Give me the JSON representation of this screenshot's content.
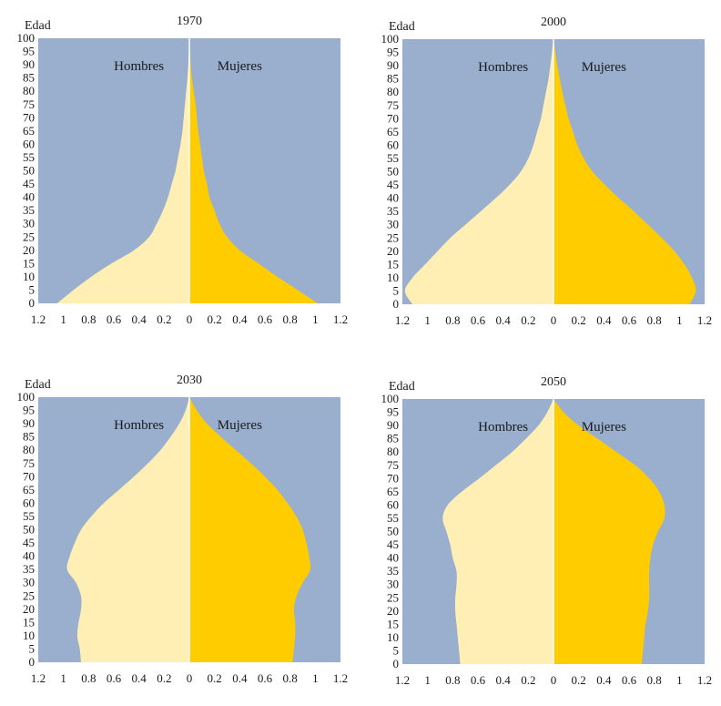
{
  "colors": {
    "background": "#9AAFCE",
    "men": "#FFEFB4",
    "women": "#FFCC00",
    "center_line": "#FFFFFF"
  },
  "chart_data": [
    {
      "type": "area",
      "chart_kind": "population-pyramid",
      "title": "1970",
      "ylabel": "Edad",
      "left_label": "Hombres",
      "right_label": "Mujeres",
      "xlim": [
        -1.2,
        1.2
      ],
      "ylim": [
        0,
        100
      ],
      "x_tick_labels": [
        "1.2",
        "1",
        "0.8",
        "0.6",
        "0.4",
        "0.2",
        "0",
        "0.2",
        "0.4",
        "0.6",
        "0.8",
        "1",
        "1.2"
      ],
      "y_ticks": [
        0,
        5,
        10,
        15,
        20,
        25,
        30,
        35,
        40,
        45,
        50,
        55,
        60,
        65,
        70,
        75,
        80,
        85,
        90,
        95,
        100
      ],
      "ages": [
        0,
        5,
        10,
        15,
        20,
        25,
        30,
        35,
        40,
        45,
        50,
        55,
        60,
        65,
        70,
        75,
        80,
        85,
        90,
        95,
        100
      ],
      "men": [
        1.05,
        0.92,
        0.78,
        0.62,
        0.44,
        0.32,
        0.26,
        0.21,
        0.17,
        0.14,
        0.11,
        0.09,
        0.07,
        0.055,
        0.045,
        0.035,
        0.025,
        0.015,
        0.008,
        0.004,
        0
      ],
      "women": [
        1.02,
        0.86,
        0.7,
        0.55,
        0.4,
        0.3,
        0.24,
        0.2,
        0.16,
        0.14,
        0.115,
        0.1,
        0.085,
        0.07,
        0.06,
        0.05,
        0.035,
        0.02,
        0.01,
        0.005,
        0
      ]
    },
    {
      "type": "area",
      "chart_kind": "population-pyramid",
      "title": "2000",
      "ylabel": "Edad",
      "left_label": "Hombres",
      "right_label": "Mujeres",
      "xlim": [
        -1.2,
        1.2
      ],
      "ylim": [
        0,
        100
      ],
      "x_tick_labels": [
        "1.2",
        "1",
        "0.8",
        "0.6",
        "0.4",
        "0.2",
        "0",
        "0.2",
        "0.4",
        "0.6",
        "0.8",
        "1",
        "1.2"
      ],
      "y_ticks": [
        0,
        5,
        10,
        15,
        20,
        25,
        30,
        35,
        40,
        45,
        50,
        55,
        60,
        65,
        70,
        75,
        80,
        85,
        90,
        95,
        100
      ],
      "ages": [
        0,
        5,
        10,
        15,
        20,
        25,
        30,
        35,
        40,
        45,
        50,
        55,
        60,
        65,
        70,
        75,
        80,
        85,
        90,
        95,
        100
      ],
      "men": [
        1.12,
        1.18,
        1.12,
        1.02,
        0.92,
        0.82,
        0.7,
        0.58,
        0.46,
        0.35,
        0.26,
        0.2,
        0.16,
        0.13,
        0.1,
        0.08,
        0.06,
        0.04,
        0.025,
        0.012,
        0
      ],
      "women": [
        1.08,
        1.13,
        1.1,
        1.04,
        0.96,
        0.86,
        0.75,
        0.64,
        0.52,
        0.41,
        0.31,
        0.24,
        0.19,
        0.155,
        0.12,
        0.095,
        0.07,
        0.05,
        0.03,
        0.015,
        0
      ]
    },
    {
      "type": "area",
      "chart_kind": "population-pyramid",
      "title": "2030",
      "ylabel": "Edad",
      "left_label": "Hombres",
      "right_label": "Mujeres",
      "xlim": [
        -1.2,
        1.2
      ],
      "ylim": [
        0,
        100
      ],
      "x_tick_labels": [
        "1.2",
        "1",
        "0.8",
        "0.6",
        "0.4",
        "0.2",
        "0",
        "0.2",
        "0.4",
        "0.6",
        "0.8",
        "1",
        "1.2"
      ],
      "y_ticks": [
        0,
        5,
        10,
        15,
        20,
        25,
        30,
        35,
        40,
        45,
        50,
        55,
        60,
        65,
        70,
        75,
        80,
        85,
        90,
        95,
        100
      ],
      "ages": [
        0,
        5,
        10,
        15,
        20,
        25,
        30,
        35,
        40,
        45,
        50,
        55,
        60,
        65,
        70,
        75,
        80,
        85,
        90,
        95,
        100
      ],
      "men": [
        0.86,
        0.87,
        0.89,
        0.88,
        0.86,
        0.86,
        0.9,
        0.97,
        0.95,
        0.91,
        0.86,
        0.78,
        0.68,
        0.56,
        0.44,
        0.33,
        0.23,
        0.15,
        0.08,
        0.03,
        0
      ],
      "women": [
        0.82,
        0.83,
        0.84,
        0.84,
        0.83,
        0.85,
        0.9,
        0.96,
        0.95,
        0.93,
        0.9,
        0.85,
        0.78,
        0.7,
        0.6,
        0.49,
        0.37,
        0.25,
        0.14,
        0.06,
        0
      ]
    },
    {
      "type": "area",
      "chart_kind": "population-pyramid",
      "title": "2050",
      "ylabel": "Edad",
      "left_label": "Hombres",
      "right_label": "Mujeres",
      "xlim": [
        -1.2,
        1.2
      ],
      "ylim": [
        0,
        100
      ],
      "x_tick_labels": [
        "1.2",
        "1",
        "0.8",
        "0.6",
        "0.4",
        "0.2",
        "0",
        "0.2",
        "0.4",
        "0.6",
        "0.8",
        "1",
        "1.2"
      ],
      "y_ticks": [
        0,
        5,
        10,
        15,
        20,
        25,
        30,
        35,
        40,
        45,
        50,
        55,
        60,
        65,
        70,
        75,
        80,
        85,
        90,
        95,
        100
      ],
      "ages": [
        0,
        5,
        10,
        15,
        20,
        25,
        30,
        35,
        40,
        45,
        50,
        55,
        60,
        65,
        70,
        75,
        80,
        85,
        90,
        95,
        100
      ],
      "men": [
        0.74,
        0.75,
        0.76,
        0.77,
        0.78,
        0.78,
        0.77,
        0.77,
        0.8,
        0.82,
        0.85,
        0.88,
        0.84,
        0.73,
        0.59,
        0.46,
        0.33,
        0.22,
        0.12,
        0.05,
        0
      ],
      "women": [
        0.7,
        0.71,
        0.72,
        0.73,
        0.75,
        0.76,
        0.76,
        0.76,
        0.77,
        0.79,
        0.83,
        0.88,
        0.88,
        0.84,
        0.76,
        0.65,
        0.5,
        0.35,
        0.2,
        0.08,
        0
      ]
    }
  ]
}
